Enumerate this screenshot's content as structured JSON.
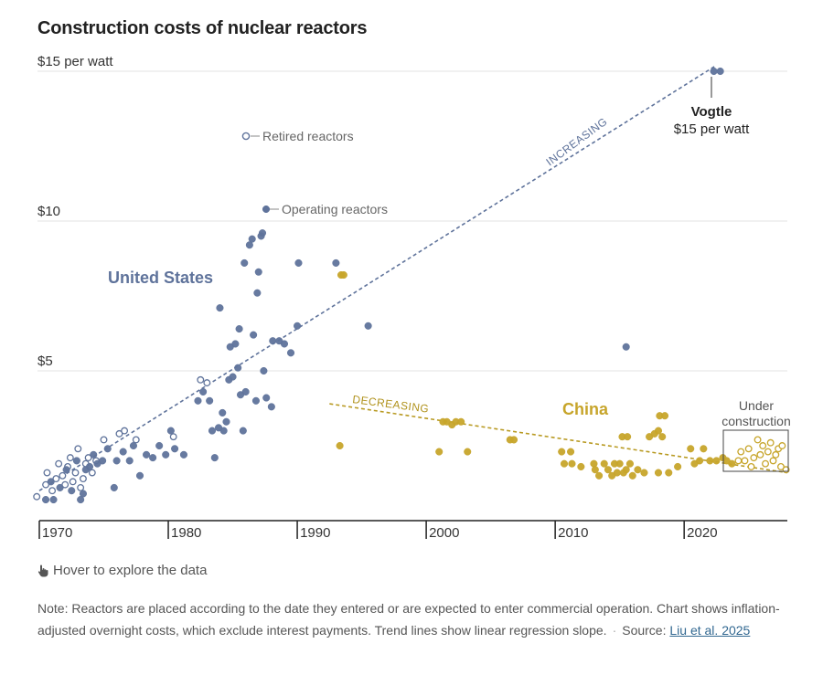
{
  "title": "Construction costs of nuclear reactors",
  "hover_hint": "Hover to explore the data",
  "note": {
    "text": "Note: Reactors are placed according to the date they entered or are expected to enter commercial operation. Chart shows inflation-adjusted overnight costs, which exclude interest payments. Trend lines show linear regression slope.",
    "separator": "·",
    "source_label": "Source:",
    "source_link": "Liu et al. 2025"
  },
  "chart_data": {
    "type": "scatter",
    "title": "Construction costs of nuclear reactors",
    "xlim": [
      1970,
      2028
    ],
    "ylim": [
      0,
      15
    ],
    "x_ticks": [
      1970,
      1980,
      1990,
      2000,
      2010,
      2020
    ],
    "x_tick_labels": [
      "1970",
      "1980",
      "1990",
      "2000",
      "2010",
      "2020"
    ],
    "y_ticks": [
      5,
      10,
      15
    ],
    "y_tick_labels": [
      "$5",
      "$10",
      "$15 per watt"
    ],
    "grid": "horizontal",
    "colors": {
      "us": "#5f739b",
      "china": "#c7a52b",
      "axis": "#222222",
      "grid": "#e3e3e3"
    },
    "legend_entries": [
      "Retired reactors",
      "Operating reactors"
    ],
    "annotations": {
      "us_label": "United States",
      "china_label": "China",
      "us_trend_label": "INCREASING",
      "china_trend_label": "DECREASING",
      "vogtle_name": "Vogtle",
      "vogtle_value": "$15 per watt",
      "under_construction": [
        "Under",
        "construction"
      ]
    },
    "trend_lines": {
      "us": {
        "x": [
          1970,
          2022.5
        ],
        "y": [
          1.0,
          15.2
        ]
      },
      "china": {
        "x": [
          1992.5,
          2028
        ],
        "y": [
          3.9,
          1.6
        ]
      }
    },
    "series": [
      {
        "name": "United States",
        "status": "retired",
        "points": [
          [
            1969.8,
            0.8
          ],
          [
            1970.5,
            1.2
          ],
          [
            1970.6,
            1.6
          ],
          [
            1971,
            1.0
          ],
          [
            1971.3,
            1.4
          ],
          [
            1971.5,
            1.9
          ],
          [
            1971.8,
            1.5
          ],
          [
            1972,
            1.2
          ],
          [
            1972.2,
            1.8
          ],
          [
            1972.4,
            2.1
          ],
          [
            1972.6,
            1.3
          ],
          [
            1972.8,
            1.6
          ],
          [
            1973,
            2.4
          ],
          [
            1973.2,
            1.1
          ],
          [
            1973.4,
            1.4
          ],
          [
            1973.6,
            1.9
          ],
          [
            1973.8,
            2.1
          ],
          [
            1974.1,
            1.6
          ],
          [
            1974.4,
            2.0
          ],
          [
            1975,
            2.7
          ],
          [
            1976.2,
            2.9
          ],
          [
            1976.6,
            3.0
          ],
          [
            1977.5,
            2.7
          ],
          [
            1980.4,
            2.8
          ],
          [
            1982.5,
            4.7
          ],
          [
            1983,
            4.6
          ]
        ]
      },
      {
        "name": "United States",
        "status": "operating",
        "points": [
          [
            1970.5,
            0.7
          ],
          [
            1970.9,
            1.3
          ],
          [
            1971.1,
            0.7
          ],
          [
            1971.6,
            1.1
          ],
          [
            1972.1,
            1.7
          ],
          [
            1972.5,
            1.0
          ],
          [
            1972.9,
            2.0
          ],
          [
            1973.2,
            0.7
          ],
          [
            1973.4,
            0.9
          ],
          [
            1973.6,
            1.7
          ],
          [
            1973.9,
            1.8
          ],
          [
            1974.2,
            2.2
          ],
          [
            1974.5,
            1.9
          ],
          [
            1974.9,
            2.0
          ],
          [
            1975.3,
            2.4
          ],
          [
            1975.8,
            1.1
          ],
          [
            1976,
            2.0
          ],
          [
            1976.5,
            2.3
          ],
          [
            1977,
            2.0
          ],
          [
            1977.3,
            2.5
          ],
          [
            1977.8,
            1.5
          ],
          [
            1978.3,
            2.2
          ],
          [
            1978.8,
            2.1
          ],
          [
            1979.3,
            2.5
          ],
          [
            1979.8,
            2.2
          ],
          [
            1980.2,
            3.0
          ],
          [
            1980.5,
            2.4
          ],
          [
            1981.2,
            2.2
          ],
          [
            1982.3,
            4.0
          ],
          [
            1982.7,
            4.3
          ],
          [
            1983.2,
            4.0
          ],
          [
            1983.4,
            3.0
          ],
          [
            1983.6,
            2.1
          ],
          [
            1983.9,
            3.1
          ],
          [
            1984,
            7.1
          ],
          [
            1984.2,
            3.6
          ],
          [
            1984.3,
            3.0
          ],
          [
            1984.5,
            3.3
          ],
          [
            1984.7,
            4.7
          ],
          [
            1984.8,
            5.8
          ],
          [
            1985,
            4.8
          ],
          [
            1985.2,
            5.9
          ],
          [
            1985.4,
            5.1
          ],
          [
            1985.5,
            6.4
          ],
          [
            1985.6,
            4.2
          ],
          [
            1985.8,
            3.0
          ],
          [
            1985.9,
            8.6
          ],
          [
            1986,
            4.3
          ],
          [
            1986.3,
            9.2
          ],
          [
            1986.5,
            9.4
          ],
          [
            1986.6,
            6.2
          ],
          [
            1986.8,
            4.0
          ],
          [
            1986.9,
            7.6
          ],
          [
            1987.0,
            8.3
          ],
          [
            1987.2,
            9.5
          ],
          [
            1987.3,
            9.6
          ],
          [
            1987.4,
            5.0
          ],
          [
            1987.6,
            4.1
          ],
          [
            1988.0,
            3.8
          ],
          [
            1988.1,
            6.0
          ],
          [
            1988.6,
            6.0
          ],
          [
            1989.0,
            5.9
          ],
          [
            1989.5,
            5.6
          ],
          [
            1990.0,
            6.5
          ],
          [
            1990.1,
            8.6
          ],
          [
            1993.0,
            8.6
          ],
          [
            1995.5,
            6.5
          ],
          [
            2015.5,
            5.8
          ],
          [
            2022.3,
            15.0
          ],
          [
            2022.8,
            15.0
          ]
        ]
      },
      {
        "name": "China",
        "status": "operating",
        "points": [
          [
            1993.3,
            2.5
          ],
          [
            1993.4,
            8.2
          ],
          [
            1993.6,
            8.2
          ],
          [
            2001.0,
            2.3
          ],
          [
            2001.3,
            3.3
          ],
          [
            2001.6,
            3.3
          ],
          [
            2002.0,
            3.2
          ],
          [
            2002.3,
            3.3
          ],
          [
            2002.7,
            3.3
          ],
          [
            2003.2,
            2.3
          ],
          [
            2006.5,
            2.7
          ],
          [
            2006.8,
            2.7
          ],
          [
            2010.5,
            2.3
          ],
          [
            2010.7,
            1.9
          ],
          [
            2011.2,
            2.3
          ],
          [
            2011.3,
            1.9
          ],
          [
            2012.0,
            1.8
          ],
          [
            2013.0,
            1.9
          ],
          [
            2013.1,
            1.7
          ],
          [
            2013.4,
            1.5
          ],
          [
            2013.8,
            1.9
          ],
          [
            2014.1,
            1.7
          ],
          [
            2014.4,
            1.5
          ],
          [
            2014.6,
            1.9
          ],
          [
            2014.8,
            1.6
          ],
          [
            2015.0,
            1.9
          ],
          [
            2015.2,
            2.8
          ],
          [
            2015.3,
            1.6
          ],
          [
            2015.5,
            1.7
          ],
          [
            2015.6,
            2.8
          ],
          [
            2015.8,
            1.9
          ],
          [
            2016.0,
            1.5
          ],
          [
            2016.4,
            1.7
          ],
          [
            2016.9,
            1.6
          ],
          [
            2017.3,
            2.8
          ],
          [
            2017.7,
            2.9
          ],
          [
            2018.0,
            3.0
          ],
          [
            2018.0,
            1.6
          ],
          [
            2018.1,
            3.5
          ],
          [
            2018.3,
            2.8
          ],
          [
            2018.5,
            3.5
          ],
          [
            2018.8,
            1.6
          ],
          [
            2019.5,
            1.8
          ],
          [
            2020.5,
            2.4
          ],
          [
            2020.8,
            1.9
          ],
          [
            2021.2,
            2.0
          ],
          [
            2021.5,
            2.4
          ],
          [
            2022.0,
            2.0
          ],
          [
            2022.5,
            2.0
          ],
          [
            2023.0,
            2.1
          ],
          [
            2023.3,
            2.0
          ],
          [
            2023.7,
            1.9
          ]
        ]
      },
      {
        "name": "China",
        "status": "under_construction",
        "points": [
          [
            2024.2,
            2.0
          ],
          [
            2024.4,
            2.3
          ],
          [
            2024.7,
            2.0
          ],
          [
            2025.0,
            2.4
          ],
          [
            2025.2,
            1.8
          ],
          [
            2025.4,
            2.1
          ],
          [
            2025.7,
            2.7
          ],
          [
            2025.9,
            2.2
          ],
          [
            2026.1,
            2.5
          ],
          [
            2026.3,
            1.9
          ],
          [
            2026.5,
            2.3
          ],
          [
            2026.7,
            2.6
          ],
          [
            2026.9,
            2.0
          ],
          [
            2027.1,
            2.2
          ],
          [
            2027.3,
            2.4
          ],
          [
            2027.5,
            1.8
          ],
          [
            2027.6,
            2.5
          ],
          [
            2027.9,
            1.7
          ]
        ]
      }
    ]
  }
}
